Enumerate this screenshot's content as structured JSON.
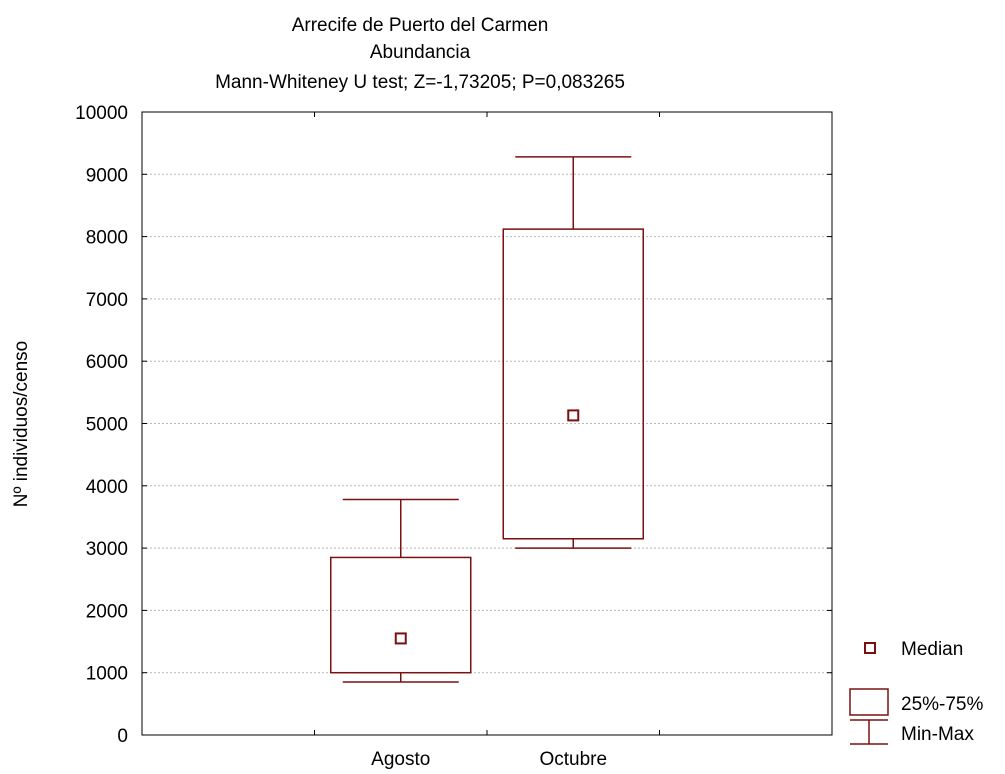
{
  "chart_data": {
    "type": "boxplot",
    "title_lines": [
      "Arrecife de Puerto del Carmen",
      "Abundancia",
      "Mann-Whiteney U test; Z=-1,73205; P=0,083265"
    ],
    "ylabel": "Nº individuos/censo",
    "xlabel": "",
    "ylim": [
      0,
      10000
    ],
    "yticks": [
      0,
      1000,
      2000,
      3000,
      4000,
      5000,
      6000,
      7000,
      8000,
      9000,
      10000
    ],
    "grid": true,
    "color": "#7b1010",
    "categories": [
      "Agosto",
      "Octubre"
    ],
    "boxes": [
      {
        "category": "Agosto",
        "min": 850,
        "q1": 1000,
        "median": 1550,
        "q3": 2850,
        "max": 3780
      },
      {
        "category": "Octubre",
        "min": 3000,
        "q1": 3150,
        "median": 5130,
        "q3": 8120,
        "max": 9280
      }
    ],
    "legend": {
      "position": "bottom-right",
      "items": [
        {
          "symbol": "median-marker",
          "label": "Median"
        },
        {
          "symbol": "box",
          "label": "25%-75%"
        },
        {
          "symbol": "whisker",
          "label": "Min-Max"
        }
      ]
    }
  }
}
